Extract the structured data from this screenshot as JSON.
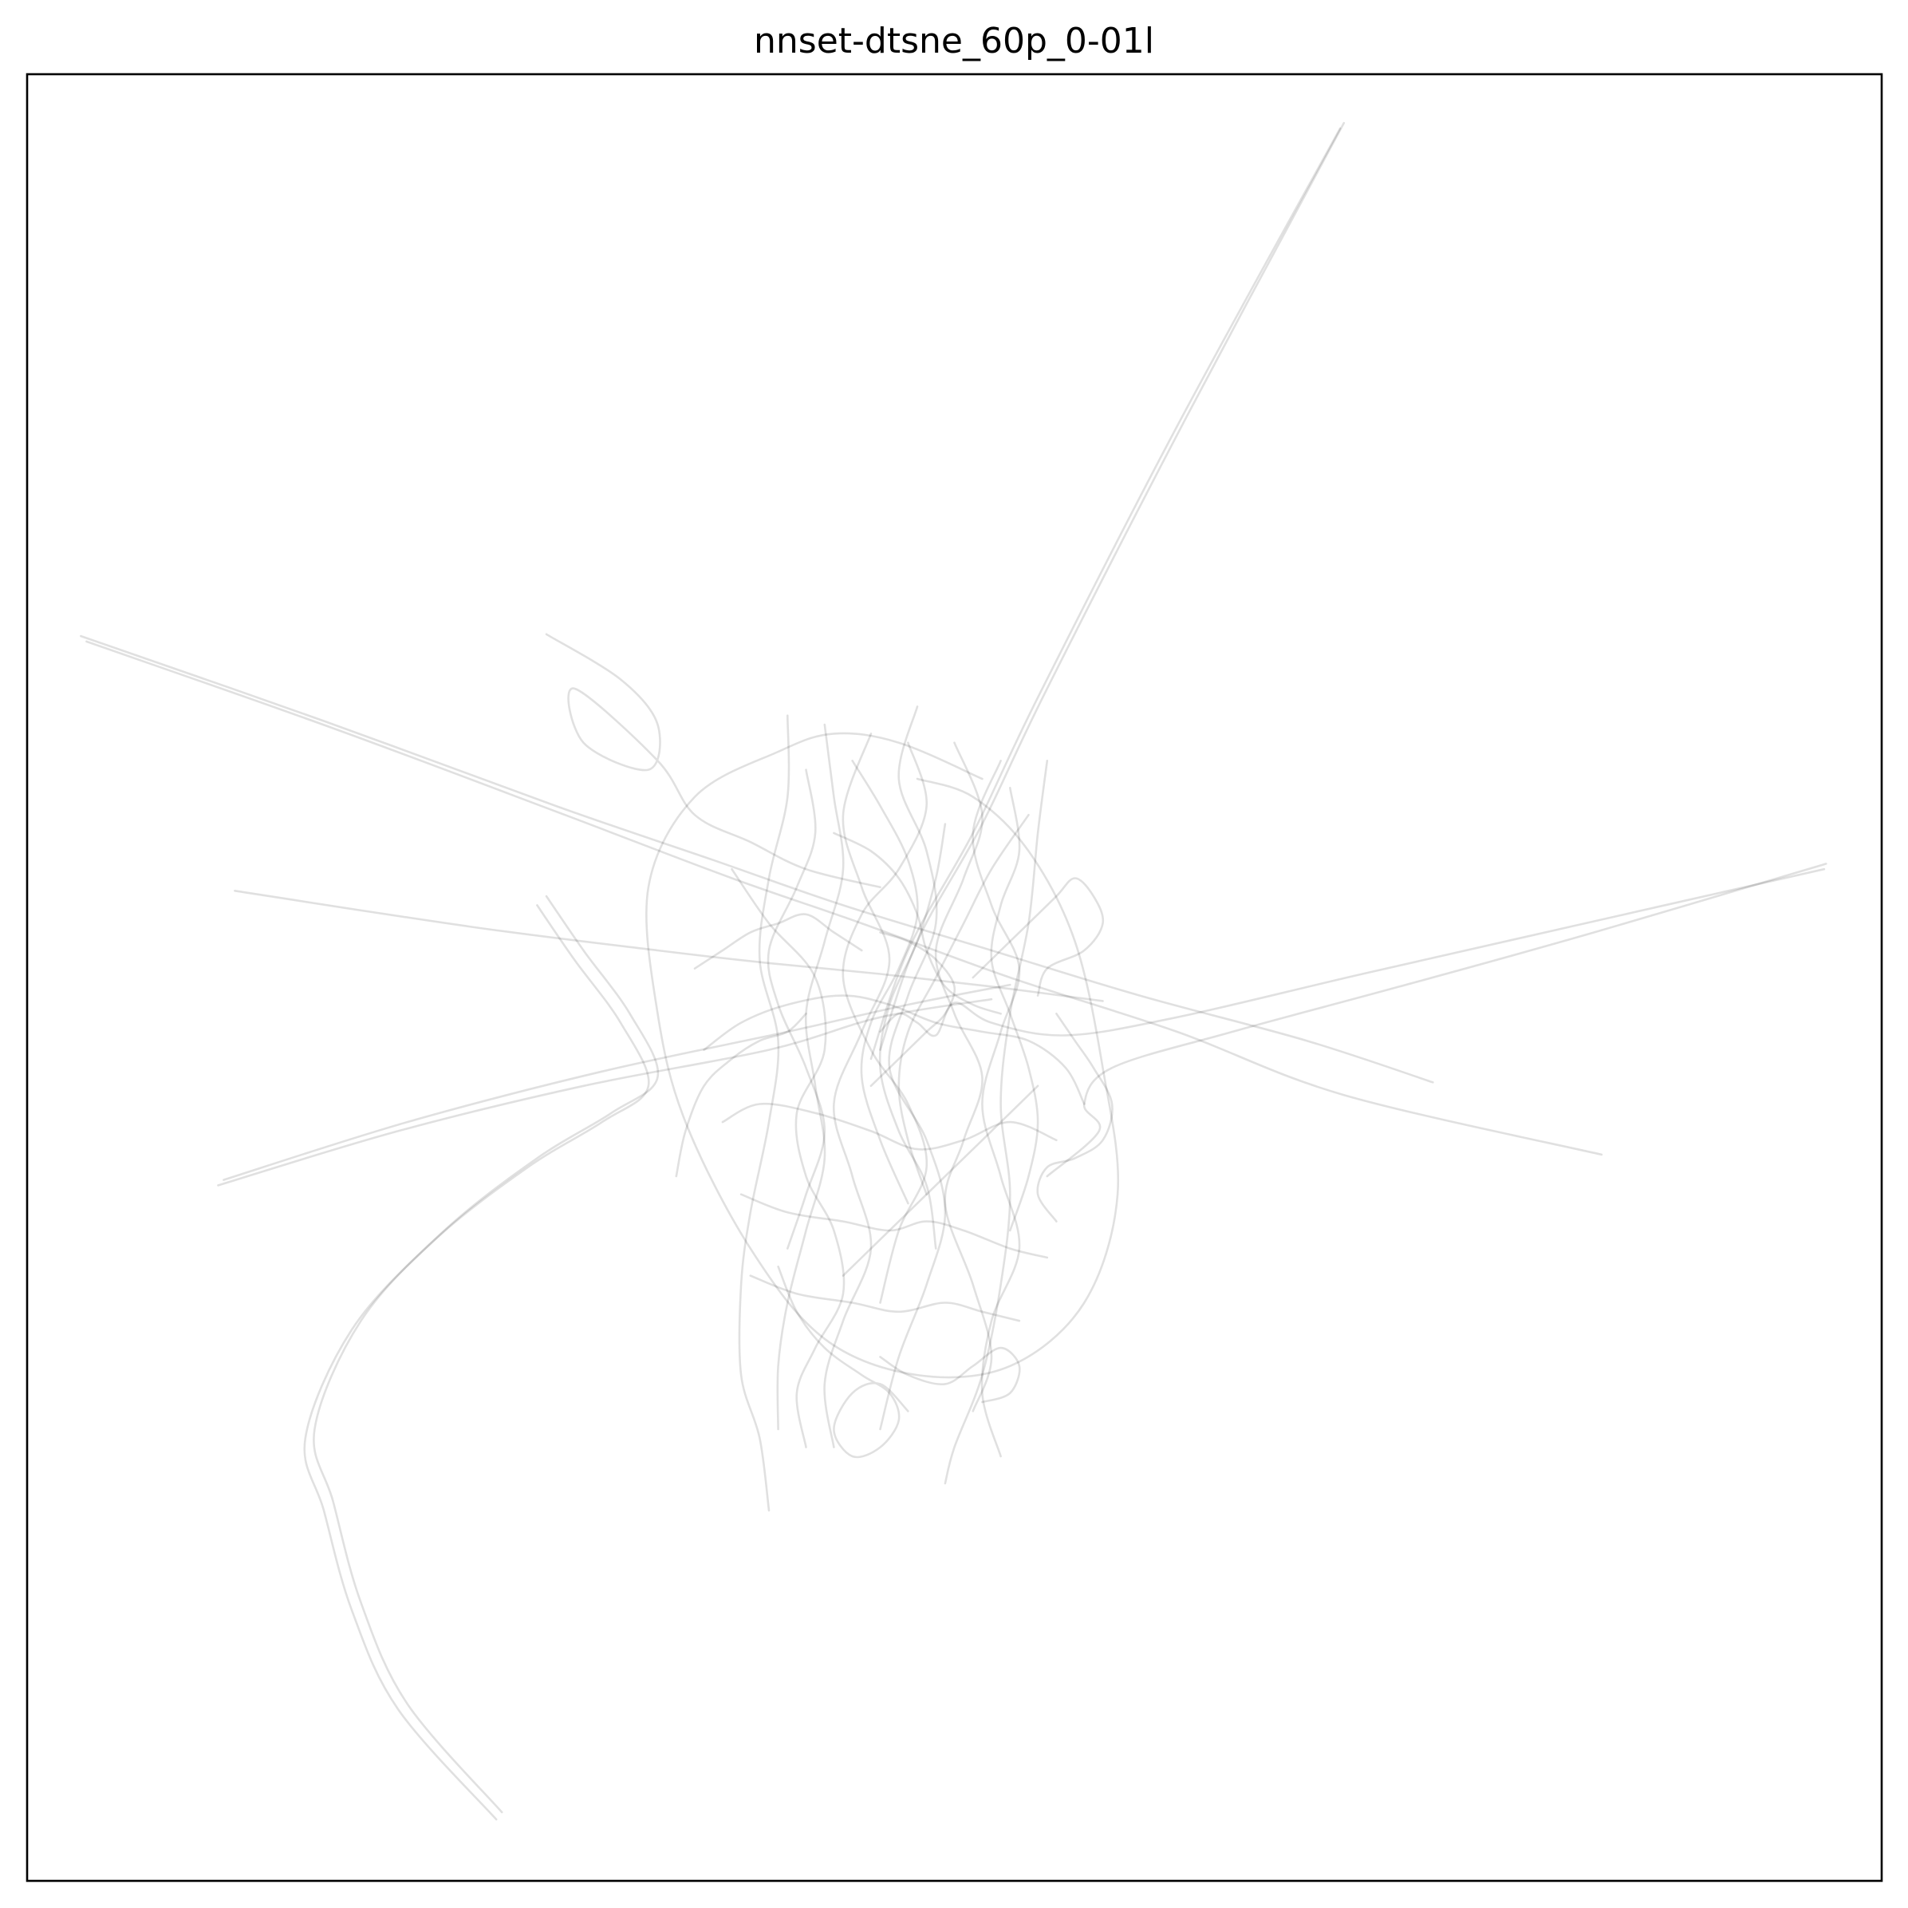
{
  "chart_data": {
    "type": "line",
    "title": "nnset-dtsne_60p_0-01l",
    "xlabel": "",
    "ylabel": "",
    "xlim": [
      0,
      100
    ],
    "ylim": [
      0,
      100
    ],
    "axis_ticks": "none",
    "grid": false,
    "legend": "none",
    "line_color": "#000000",
    "line_opacity": 0.12,
    "series": [
      {
        "x": [
          71.0,
          62.5,
          55.0,
          51.5,
          48.0,
          46.0
        ],
        "y": [
          97.3,
          81.0,
          66.0,
          58.5,
          52.0,
          46.0
        ]
      },
      {
        "x": [
          70.8,
          62.0,
          54.5,
          51.0,
          47.5,
          45.5
        ],
        "y": [
          97.0,
          80.5,
          65.5,
          58.0,
          51.5,
          45.5
        ]
      },
      {
        "x": [
          2.9,
          16.0,
          28.5,
          37.0,
          44.0,
          52.0,
          60.0,
          69.0,
          75.8
        ],
        "y": [
          68.9,
          64.2,
          59.5,
          56.5,
          54.0,
          51.5,
          49.0,
          46.5,
          44.2
        ]
      },
      {
        "x": [
          3.2,
          16.5,
          29.0,
          38.0,
          45.0,
          53.0,
          62.0,
          71.0,
          84.9
        ],
        "y": [
          68.6,
          63.8,
          59.0,
          55.5,
          53.0,
          50.0,
          47.0,
          43.5,
          40.2
        ]
      },
      {
        "x": [
          11.2,
          24.0,
          34.0,
          40.0,
          46.0,
          52.0,
          58.0
        ],
        "y": [
          54.8,
          52.8,
          51.5,
          50.8,
          50.2,
          49.5,
          48.7
        ]
      },
      {
        "x": [
          96.9,
          84.0,
          72.0,
          62.0,
          56.0,
          52.0,
          50.0,
          49.0,
          48.0,
          47.0,
          46.0
        ],
        "y": [
          56.0,
          53.0,
          50.2,
          47.8,
          46.8,
          47.5,
          48.6,
          46.8,
          47.5,
          48.0,
          47.0
        ]
      },
      {
        "x": [
          97.0,
          84.5,
          74.0,
          65.0,
          58.5,
          57.0,
          57.8,
          55.0
        ],
        "y": [
          56.3,
          52.5,
          49.5,
          47.0,
          45.0,
          43.0,
          41.5,
          39.0
        ]
      },
      {
        "x": [
          10.3,
          20.0,
          30.0,
          40.0,
          46.0,
          52.0
        ],
        "y": [
          38.5,
          41.5,
          44.0,
          46.0,
          47.8,
          48.8
        ]
      },
      {
        "x": [
          10.6,
          20.5,
          31.0,
          41.0,
          47.5,
          53.0
        ],
        "y": [
          38.8,
          42.0,
          44.8,
          47.0,
          48.5,
          49.6
        ]
      },
      {
        "x": [
          25.3,
          20.0,
          17.5,
          16.0,
          15.0,
          17.5,
          22.0,
          27.0,
          31.0,
          33.5,
          32.0,
          29.5,
          27.5
        ],
        "y": [
          3.4,
          9.5,
          15.0,
          20.5,
          24.5,
          30.5,
          35.5,
          39.5,
          42.0,
          44.0,
          47.5,
          51.0,
          54.0
        ]
      },
      {
        "x": [
          25.6,
          20.5,
          18.0,
          16.5,
          15.5,
          18.0,
          22.5,
          27.5,
          31.5,
          34.0,
          32.5,
          30.0,
          28.0
        ],
        "y": [
          3.8,
          9.8,
          15.4,
          21.0,
          25.0,
          31.0,
          36.0,
          40.0,
          42.5,
          44.5,
          48.0,
          51.5,
          54.5
        ]
      },
      {
        "x": [
          28.0,
          32.0,
          34.0,
          33.5,
          30.0,
          29.5,
          34.0,
          36.0,
          39.0,
          42.0,
          46.0
        ],
        "y": [
          69.0,
          66.5,
          64.0,
          61.5,
          63.0,
          66.0,
          62.0,
          59.0,
          57.5,
          56.0,
          55.0
        ]
      },
      {
        "x": [
          51.5,
          47.0,
          43.5,
          40.5,
          36.0,
          33.5,
          34.0,
          35.5,
          39.0,
          43.0,
          48.0,
          53.0,
          57.0,
          58.8,
          58.0,
          56.5,
          54.0,
          51.0,
          48.0
        ],
        "y": [
          61.0,
          63.0,
          63.5,
          62.5,
          60.0,
          55.0,
          48.0,
          42.0,
          35.0,
          30.0,
          28.0,
          28.5,
          32.0,
          38.0,
          45.0,
          52.0,
          57.0,
          60.0,
          61.0
        ]
      },
      {
        "x": [
          55.0,
          54.5,
          54.0,
          53.0,
          52.5,
          53.0,
          52.5,
          51.5,
          50.0,
          49.5
        ],
        "y": [
          62.0,
          58.0,
          53.0,
          48.0,
          43.0,
          38.0,
          33.0,
          28.0,
          24.0,
          22.0
        ]
      },
      {
        "x": [
          41.0,
          41.0,
          40.0,
          39.5,
          40.5,
          40.0,
          39.0,
          38.5,
          38.5,
          39.5,
          40.0
        ],
        "y": [
          64.5,
          60.0,
          55.5,
          51.0,
          46.5,
          42.0,
          37.0,
          33.0,
          28.0,
          24.5,
          20.5
        ]
      },
      {
        "x": [
          43.0,
          43.5,
          44.0,
          43.0,
          42.0,
          42.5,
          43.0,
          42.0,
          41.0,
          40.5,
          40.5
        ],
        "y": [
          64.0,
          60.0,
          56.0,
          52.0,
          48.0,
          44.0,
          40.0,
          36.0,
          32.0,
          28.5,
          25.0
        ]
      },
      {
        "x": [
          48.0,
          47.0,
          48.5,
          49.0,
          47.5,
          46.5,
          48.5,
          49.5,
          48.5,
          47.0,
          46.0
        ],
        "y": [
          65.0,
          61.0,
          57.0,
          53.0,
          49.0,
          45.0,
          41.0,
          37.0,
          33.0,
          29.0,
          25.0
        ]
      },
      {
        "x": [
          45.5,
          44.0,
          45.0,
          46.5,
          45.0,
          43.5,
          44.5,
          45.5,
          44.0,
          43.0,
          43.5
        ],
        "y": [
          63.5,
          59.0,
          55.0,
          51.0,
          47.0,
          43.0,
          39.0,
          35.0,
          31.0,
          27.5,
          24.0
        ]
      },
      {
        "x": [
          50.0,
          51.5,
          50.5,
          49.0,
          50.0,
          51.5,
          50.5,
          49.5,
          51.0,
          52.0,
          51.0
        ],
        "y": [
          63.0,
          59.0,
          55.5,
          51.5,
          48.0,
          44.5,
          41.0,
          37.5,
          33.0,
          29.0,
          26.0
        ]
      },
      {
        "x": [
          52.5,
          51.0,
          52.0,
          53.5,
          52.5,
          51.5,
          52.5,
          53.5,
          52.0,
          51.5,
          52.5
        ],
        "y": [
          62.0,
          58.0,
          54.0,
          50.5,
          47.0,
          43.0,
          39.0,
          35.0,
          31.0,
          27.0,
          23.5
        ]
      },
      {
        "x": [
          38.0,
          40.0,
          42.5,
          43.0,
          41.5,
          42.0,
          43.5,
          44.0,
          42.5,
          41.5,
          42.0
        ],
        "y": [
          56.0,
          53.0,
          50.0,
          46.0,
          42.5,
          39.0,
          36.0,
          32.5,
          29.5,
          27.0,
          24.0
        ]
      },
      {
        "x": [
          47.5,
          48.5,
          47.0,
          45.0,
          44.0,
          45.5,
          47.5,
          48.5,
          47.0,
          46.0
        ],
        "y": [
          63.0,
          59.5,
          56.0,
          53.5,
          50.0,
          46.0,
          43.0,
          39.5,
          36.0,
          32.0
        ]
      },
      {
        "x": [
          36.5,
          38.5,
          41.0,
          44.0,
          46.5,
          49.0,
          51.5,
          54.0,
          56.0,
          57.0
        ],
        "y": [
          46.0,
          47.5,
          48.5,
          49.0,
          48.5,
          47.5,
          47.0,
          46.5,
          45.0,
          43.0
        ]
      },
      {
        "x": [
          37.5,
          39.5,
          42.5,
          45.5,
          48.0,
          50.5,
          53.0,
          55.5
        ],
        "y": [
          42.0,
          43.0,
          42.5,
          41.5,
          40.5,
          41.0,
          42.0,
          41.0
        ]
      },
      {
        "x": [
          38.5,
          41.0,
          44.0,
          46.5,
          48.5,
          50.5,
          53.0,
          55.0
        ],
        "y": [
          38.0,
          37.0,
          36.5,
          36.0,
          36.5,
          36.0,
          35.0,
          34.5
        ]
      },
      {
        "x": [
          39.0,
          41.5,
          44.5,
          47.0,
          49.5,
          51.5,
          53.5
        ],
        "y": [
          33.5,
          32.5,
          32.0,
          31.5,
          32.0,
          31.5,
          31.0
        ]
      },
      {
        "x": [
          54.0,
          52.0,
          50.5,
          49.0,
          47.5,
          47.0,
          47.5,
          48.5
        ],
        "y": [
          59.0,
          56.0,
          53.0,
          50.0,
          47.0,
          44.0,
          41.0,
          38.0
        ]
      },
      {
        "x": [
          49.5,
          49.0,
          48.0,
          46.5,
          46.0,
          47.0,
          48.5,
          49.0
        ],
        "y": [
          58.5,
          55.5,
          52.0,
          48.5,
          45.0,
          41.5,
          38.5,
          35.0
        ]
      },
      {
        "x": [
          42.0,
          42.5,
          41.5,
          40.0,
          40.5,
          42.0,
          43.0,
          42.0,
          41.0
        ],
        "y": [
          61.5,
          58.0,
          55.0,
          51.5,
          48.5,
          45.0,
          41.5,
          38.0,
          35.0
        ]
      },
      {
        "x": [
          44.5,
          46.0,
          47.5,
          48.0,
          47.0,
          45.5,
          45.0,
          46.0,
          47.5
        ],
        "y": [
          62.0,
          59.5,
          56.5,
          53.5,
          50.5,
          47.5,
          44.5,
          41.0,
          37.5
        ]
      },
      {
        "x": [
          53.0,
          53.5,
          52.5,
          52.0,
          53.0,
          54.0,
          54.5,
          54.0,
          53.0
        ],
        "y": [
          60.5,
          57.0,
          54.0,
          51.0,
          48.0,
          45.0,
          42.0,
          39.0,
          36.0
        ]
      },
      {
        "x": [
          40.5,
          41.5,
          43.0,
          45.0,
          46.5,
          47.0,
          46.0,
          44.5,
          43.5,
          44.5,
          46.0,
          47.5
        ],
        "y": [
          34.0,
          31.5,
          29.5,
          28.0,
          27.0,
          25.5,
          24.0,
          23.5,
          25.0,
          27.0,
          27.5,
          26.0
        ]
      },
      {
        "x": [
          46.0,
          47.5,
          49.5,
          51.0,
          52.5,
          53.5,
          53.0,
          51.5
        ],
        "y": [
          29.0,
          28.0,
          27.5,
          28.5,
          29.5,
          28.5,
          27.0,
          26.5
        ]
      },
      {
        "x": [
          45.5,
          47.0,
          48.5,
          49.5,
          50.0,
          49.0,
          47.5,
          46.0
        ],
        "y": [
          44.0,
          45.5,
          47.0,
          48.0,
          49.5,
          51.0,
          52.0,
          52.5
        ]
      },
      {
        "x": [
          51.0,
          52.5,
          54.0,
          55.5,
          56.5,
          57.5,
          58.0,
          57.0,
          55.0,
          54.5
        ],
        "y": [
          50.0,
          51.5,
          53.0,
          54.5,
          55.5,
          54.5,
          53.0,
          51.5,
          50.5,
          49.0
        ]
      },
      {
        "x": [
          36.0,
          37.5,
          39.0,
          40.5,
          42.0,
          43.5,
          45.0
        ],
        "y": [
          50.5,
          51.5,
          52.5,
          53.0,
          53.5,
          52.5,
          51.5
        ]
      },
      {
        "x": [
          55.5,
          56.5,
          57.5,
          58.5,
          58.0,
          56.5,
          55.0,
          54.5,
          55.5
        ],
        "y": [
          48.0,
          46.5,
          45.0,
          43.0,
          41.0,
          40.0,
          39.5,
          38.0,
          36.5
        ]
      },
      {
        "x": [
          35.0,
          35.5,
          36.5,
          38.0,
          39.5,
          41.0,
          42.0
        ],
        "y": [
          39.0,
          41.5,
          44.0,
          45.5,
          46.5,
          47.0,
          48.0
        ]
      },
      {
        "x": [
          43.5,
          45.5,
          47.0,
          48.0,
          48.5,
          49.5,
          51.0,
          52.5
        ],
        "y": [
          58.0,
          57.0,
          55.5,
          53.5,
          51.5,
          49.5,
          48.5,
          48.0
        ]
      },
      {
        "x": [
          54.5,
          53.0,
          51.5,
          50.0,
          48.5,
          47.0,
          45.5,
          44.0
        ],
        "y": [
          44.0,
          42.5,
          41.0,
          39.5,
          38.0,
          36.5,
          35.0,
          33.5
        ]
      }
    ]
  }
}
